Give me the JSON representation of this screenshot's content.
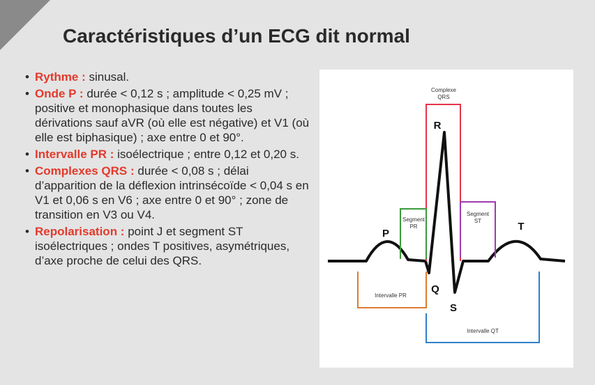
{
  "header": {
    "title": "Caractéristiques d’un ECG dit normal"
  },
  "items": [
    {
      "label": "Rythme :",
      "text": "sinusal."
    },
    {
      "label": "Onde P :",
      "text": "durée < 0,12 s ; amplitude < 0,25 mV ; positive et monophasique dans toutes les dérivations sauf aVR (où elle est négative) et V1 (où elle est biphasique) ; axe entre 0 et 90°."
    },
    {
      "label": "Intervalle PR :",
      "text": "isoélectrique ; entre 0,12 et 0,20 s."
    },
    {
      "label": "Complexes QRS :",
      "text": "durée < 0,08 s ; délai d’apparition de la déflexion intrinsécoïde < 0,04 s en V1 et 0,06 s en V6 ; axe entre 0 et 90° ; zone de transition en V3 ou V4."
    },
    {
      "label": "Repolarisation :",
      "text": "point J et segment ST isoélectriques ; ondes T positives, asymétriques, d’axe proche de celui des QRS."
    }
  ],
  "diagram": {
    "complexe_qrs": [
      "Complexe",
      "QRS"
    ],
    "segment_pr": [
      "Segment",
      "PR"
    ],
    "segment_st": [
      "Segment",
      "ST"
    ],
    "intervalle_pr": "Intervalle PR",
    "intervalle_qt": "Intervalle QT",
    "waves": {
      "p": "P",
      "q": "Q",
      "r": "R",
      "s": "S",
      "t": "T"
    }
  }
}
